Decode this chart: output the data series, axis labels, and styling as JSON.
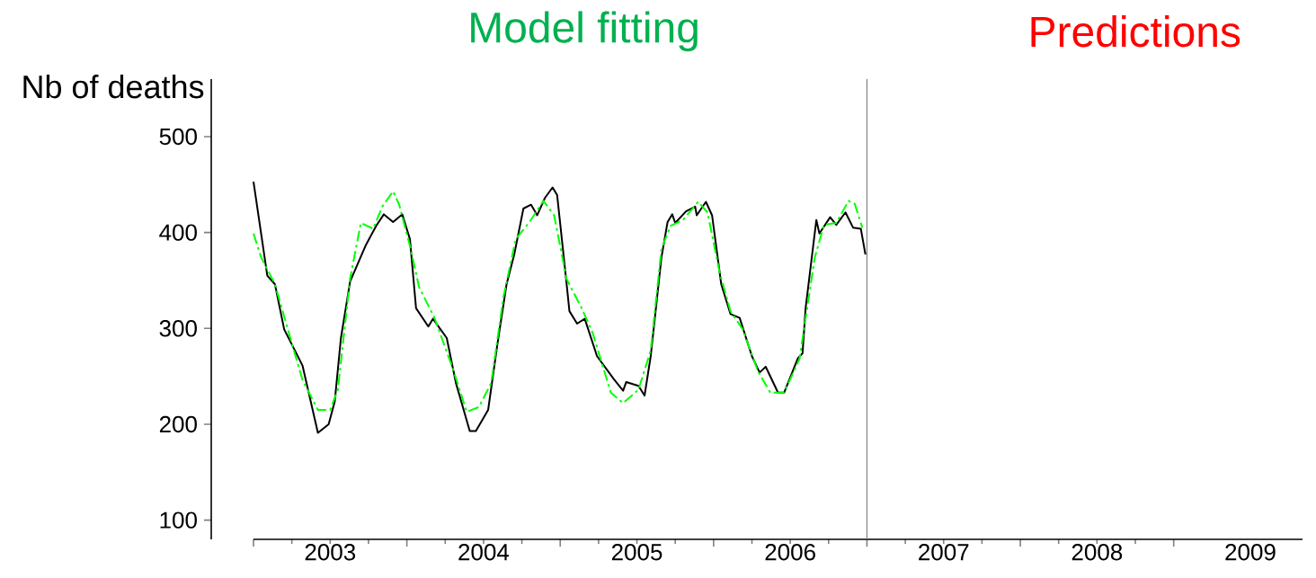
{
  "chart_data": {
    "type": "line",
    "annotations": [
      "Model fitting",
      "Predictions"
    ],
    "ylabel": "Nb of deaths",
    "xlim": [
      2003,
      2009.84
    ],
    "ylim": [
      80,
      560
    ],
    "xticks": [
      {
        "value": 2003,
        "label": null
      },
      {
        "value": 2004,
        "label": null
      },
      {
        "value": 2005,
        "label": null
      },
      {
        "value": 2006,
        "label": null
      },
      {
        "value": 2007,
        "label": null
      },
      {
        "value": 2008,
        "label": null
      },
      {
        "value": 2009,
        "label": null
      },
      {
        "value": 2003.5,
        "label": "2003"
      },
      {
        "value": 2004.5,
        "label": "2004"
      },
      {
        "value": 2005.5,
        "label": "2005"
      },
      {
        "value": 2006.5,
        "label": "2006"
      },
      {
        "value": 2007.5,
        "label": "2007"
      },
      {
        "value": 2008.5,
        "label": "2008"
      },
      {
        "value": 2009.5,
        "label": "2009"
      }
    ],
    "yticks": [
      100,
      200,
      300,
      400,
      500
    ],
    "ref_lines": [
      {
        "axis": "x",
        "value": 2007,
        "color": "#808080"
      }
    ],
    "series": [
      {
        "color": "#000000",
        "line_style": "solid",
        "x": [
          2003.0,
          2003.09,
          2003.14,
          2003.2,
          2003.27,
          2003.32,
          2003.42,
          2003.49,
          2003.53,
          2003.57,
          2003.63,
          2003.73,
          2003.8,
          2003.85,
          2003.91,
          2003.97,
          2004.02,
          2004.06,
          2004.14,
          2004.17,
          2004.26,
          2004.32,
          2004.41,
          2004.45,
          2004.53,
          2004.59,
          2004.65,
          2004.7,
          2004.76,
          2004.81,
          2004.85,
          2004.9,
          2004.95,
          2004.98,
          2005.04,
          2005.06,
          2005.11,
          2005.16,
          2005.24,
          2005.35,
          2005.41,
          2005.43,
          2005.51,
          2005.55,
          2005.59,
          2005.66,
          2005.7,
          2005.73,
          2005.75,
          2005.82,
          2005.88,
          2005.89,
          2005.95,
          2005.99,
          2006.05,
          2006.11,
          2006.17,
          2006.25,
          2006.3,
          2006.34,
          2006.42,
          2006.46,
          2006.55,
          2006.58,
          2006.6,
          2006.67,
          2006.69,
          2006.76,
          2006.8,
          2006.86,
          2006.91,
          2006.96,
          2006.99
        ],
        "values": [
          453,
          355,
          346,
          299,
          277,
          261,
          191,
          200,
          224,
          290,
          349,
          386,
          407,
          419,
          411,
          419,
          393,
          321,
          302,
          310,
          290,
          243,
          193,
          193,
          215,
          283,
          346,
          377,
          425,
          429,
          418,
          436,
          447,
          439,
          349,
          318,
          305,
          310,
          271,
          247,
          235,
          244,
          240,
          230,
          271,
          374,
          411,
          419,
          410,
          422,
          427,
          418,
          432,
          418,
          346,
          315,
          311,
          271,
          254,
          260,
          233,
          233,
          269,
          274,
          321,
          413,
          399,
          416,
          408,
          421,
          405,
          404,
          377
        ]
      },
      {
        "color": "#00ff00",
        "line_style": "dashed",
        "x": [
          2003.0,
          2003.05,
          2003.14,
          2003.24,
          2003.32,
          2003.42,
          2003.5,
          2003.55,
          2003.63,
          2003.7,
          2003.78,
          2003.84,
          2003.91,
          2003.95,
          2004.02,
          2004.08,
          2004.18,
          2004.3,
          2004.39,
          2004.47,
          2004.55,
          2004.63,
          2004.71,
          2004.8,
          2004.89,
          2004.96,
          2005.03,
          2005.04,
          2005.14,
          2005.21,
          2005.33,
          2005.41,
          2005.51,
          2005.59,
          2005.66,
          2005.72,
          2005.8,
          2005.9,
          2005.96,
          2006.04,
          2006.11,
          2006.19,
          2006.29,
          2006.37,
          2006.46,
          2006.56,
          2006.66,
          2006.72,
          2006.8,
          2006.88,
          2006.92,
          2006.97
        ],
        "values": [
          399,
          374,
          346,
          290,
          246,
          215,
          215,
          236,
          352,
          410,
          404,
          427,
          443,
          429,
          386,
          343,
          311,
          258,
          213,
          218,
          243,
          333,
          393,
          411,
          433,
          418,
          361,
          352,
          321,
          296,
          233,
          222,
          236,
          277,
          383,
          407,
          413,
          432,
          421,
          358,
          318,
          299,
          255,
          233,
          233,
          268,
          374,
          408,
          410,
          433,
          430,
          405
        ]
      }
    ]
  }
}
